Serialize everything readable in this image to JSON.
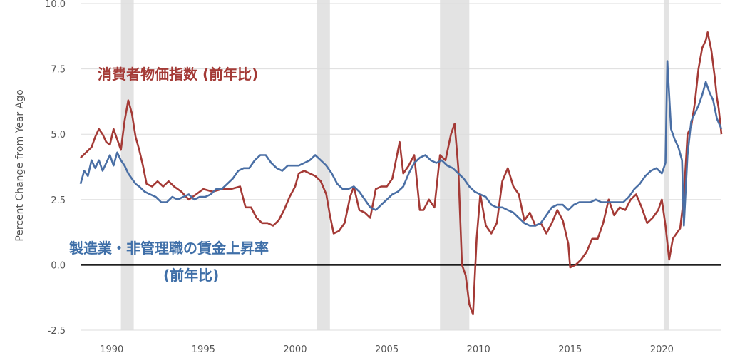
{
  "chart_data": {
    "type": "line",
    "ylabel": "Percent Change from Year Ago",
    "xlim": [
      1988.3,
      2023.25
    ],
    "ylim": [
      -2.5,
      10.0
    ],
    "y_ticks": [
      -2.5,
      0.0,
      2.5,
      5.0,
      7.5,
      10.0
    ],
    "y_tick_labels": [
      "-2.5",
      "0.0",
      "2.5",
      "5.0",
      "7.5",
      "10.0"
    ],
    "x_ticks": [
      1990,
      1995,
      2000,
      2005,
      2010,
      2015,
      2020
    ],
    "x_tick_labels": [
      "1990",
      "1995",
      "2000",
      "2005",
      "2010",
      "2015",
      "2020"
    ],
    "grid": "horizontal",
    "zero_line": true,
    "recessions": [
      [
        1990.5,
        1991.2
      ],
      [
        2001.2,
        2001.9
      ],
      [
        2007.9,
        2009.5
      ],
      [
        2020.1,
        2020.4
      ]
    ],
    "annotations": {
      "cpi_label": "消費者物価指数 (前年比)",
      "wage_label_line1": "製造業・非管理職の賃金上昇率",
      "wage_label_line2": "(前年比)"
    },
    "series": [
      {
        "name": "消費者物価指数 (前年比)",
        "color": "#a43a36",
        "points": [
          [
            1988.3,
            4.1
          ],
          [
            1988.6,
            4.3
          ],
          [
            1988.9,
            4.5
          ],
          [
            1989.1,
            4.9
          ],
          [
            1989.3,
            5.2
          ],
          [
            1989.5,
            5.0
          ],
          [
            1989.7,
            4.7
          ],
          [
            1989.9,
            4.6
          ],
          [
            1990.1,
            5.2
          ],
          [
            1990.3,
            4.8
          ],
          [
            1990.5,
            4.4
          ],
          [
            1990.7,
            5.5
          ],
          [
            1990.9,
            6.3
          ],
          [
            1991.1,
            5.8
          ],
          [
            1991.3,
            4.9
          ],
          [
            1991.5,
            4.4
          ],
          [
            1991.7,
            3.8
          ],
          [
            1991.9,
            3.1
          ],
          [
            1992.2,
            3.0
          ],
          [
            1992.5,
            3.2
          ],
          [
            1992.8,
            3.0
          ],
          [
            1993.1,
            3.2
          ],
          [
            1993.4,
            3.0
          ],
          [
            1993.8,
            2.8
          ],
          [
            1994.2,
            2.5
          ],
          [
            1994.6,
            2.7
          ],
          [
            1995.0,
            2.9
          ],
          [
            1995.5,
            2.8
          ],
          [
            1996.0,
            2.9
          ],
          [
            1996.5,
            2.9
          ],
          [
            1997.0,
            3.0
          ],
          [
            1997.3,
            2.2
          ],
          [
            1997.6,
            2.2
          ],
          [
            1997.9,
            1.8
          ],
          [
            1998.2,
            1.6
          ],
          [
            1998.5,
            1.6
          ],
          [
            1998.8,
            1.5
          ],
          [
            1999.1,
            1.7
          ],
          [
            1999.4,
            2.1
          ],
          [
            1999.7,
            2.6
          ],
          [
            2000.0,
            3.0
          ],
          [
            2000.2,
            3.5
          ],
          [
            2000.5,
            3.6
          ],
          [
            2000.8,
            3.5
          ],
          [
            2001.1,
            3.4
          ],
          [
            2001.4,
            3.2
          ],
          [
            2001.7,
            2.7
          ],
          [
            2001.9,
            1.9
          ],
          [
            2002.1,
            1.2
          ],
          [
            2002.4,
            1.3
          ],
          [
            2002.7,
            1.6
          ],
          [
            2003.0,
            2.6
          ],
          [
            2003.2,
            3.0
          ],
          [
            2003.5,
            2.1
          ],
          [
            2003.8,
            2.0
          ],
          [
            2004.1,
            1.8
          ],
          [
            2004.4,
            2.9
          ],
          [
            2004.7,
            3.0
          ],
          [
            2005.0,
            3.0
          ],
          [
            2005.3,
            3.3
          ],
          [
            2005.7,
            4.7
          ],
          [
            2005.9,
            3.5
          ],
          [
            2006.2,
            3.8
          ],
          [
            2006.5,
            4.2
          ],
          [
            2006.8,
            2.1
          ],
          [
            2007.0,
            2.1
          ],
          [
            2007.3,
            2.5
          ],
          [
            2007.6,
            2.2
          ],
          [
            2007.9,
            4.2
          ],
          [
            2008.2,
            4.0
          ],
          [
            2008.5,
            5.0
          ],
          [
            2008.7,
            5.4
          ],
          [
            2008.9,
            3.7
          ],
          [
            2009.1,
            0.0
          ],
          [
            2009.3,
            -0.4
          ],
          [
            2009.5,
            -1.5
          ],
          [
            2009.7,
            -1.9
          ],
          [
            2009.9,
            1.0
          ],
          [
            2010.1,
            2.7
          ],
          [
            2010.4,
            1.5
          ],
          [
            2010.7,
            1.2
          ],
          [
            2011.0,
            1.6
          ],
          [
            2011.3,
            3.2
          ],
          [
            2011.6,
            3.7
          ],
          [
            2011.9,
            3.0
          ],
          [
            2012.2,
            2.7
          ],
          [
            2012.5,
            1.7
          ],
          [
            2012.8,
            2.0
          ],
          [
            2013.1,
            1.5
          ],
          [
            2013.4,
            1.6
          ],
          [
            2013.7,
            1.2
          ],
          [
            2014.0,
            1.6
          ],
          [
            2014.3,
            2.1
          ],
          [
            2014.6,
            1.7
          ],
          [
            2014.9,
            0.8
          ],
          [
            2015.0,
            -0.1
          ],
          [
            2015.3,
            0.0
          ],
          [
            2015.6,
            0.2
          ],
          [
            2015.9,
            0.5
          ],
          [
            2016.2,
            1.0
          ],
          [
            2016.5,
            1.0
          ],
          [
            2016.8,
            1.6
          ],
          [
            2017.1,
            2.5
          ],
          [
            2017.4,
            1.9
          ],
          [
            2017.7,
            2.2
          ],
          [
            2018.0,
            2.1
          ],
          [
            2018.3,
            2.5
          ],
          [
            2018.6,
            2.7
          ],
          [
            2018.9,
            2.2
          ],
          [
            2019.2,
            1.6
          ],
          [
            2019.5,
            1.8
          ],
          [
            2019.8,
            2.1
          ],
          [
            2020.0,
            2.5
          ],
          [
            2020.2,
            1.5
          ],
          [
            2020.4,
            0.2
          ],
          [
            2020.6,
            1.0
          ],
          [
            2020.8,
            1.2
          ],
          [
            2021.0,
            1.4
          ],
          [
            2021.2,
            2.6
          ],
          [
            2021.4,
            5.0
          ],
          [
            2021.6,
            5.3
          ],
          [
            2021.8,
            6.2
          ],
          [
            2022.0,
            7.5
          ],
          [
            2022.2,
            8.3
          ],
          [
            2022.4,
            8.6
          ],
          [
            2022.5,
            8.9
          ],
          [
            2022.7,
            8.2
          ],
          [
            2022.9,
            7.1
          ],
          [
            2023.0,
            6.4
          ],
          [
            2023.1,
            6.0
          ],
          [
            2023.25,
            5.0
          ]
        ]
      },
      {
        "name": "製造業・非管理職の賃金上昇率 (前年比)",
        "color": "#4a6fa5",
        "points": [
          [
            1988.3,
            3.1
          ],
          [
            1988.5,
            3.6
          ],
          [
            1988.7,
            3.4
          ],
          [
            1988.9,
            4.0
          ],
          [
            1989.1,
            3.7
          ],
          [
            1989.3,
            4.0
          ],
          [
            1989.5,
            3.6
          ],
          [
            1989.7,
            3.9
          ],
          [
            1989.9,
            4.2
          ],
          [
            1990.1,
            3.8
          ],
          [
            1990.3,
            4.3
          ],
          [
            1990.5,
            4.0
          ],
          [
            1990.7,
            3.8
          ],
          [
            1990.9,
            3.5
          ],
          [
            1991.1,
            3.3
          ],
          [
            1991.3,
            3.1
          ],
          [
            1991.5,
            3.0
          ],
          [
            1991.8,
            2.8
          ],
          [
            1992.1,
            2.7
          ],
          [
            1992.4,
            2.6
          ],
          [
            1992.7,
            2.4
          ],
          [
            1993.0,
            2.4
          ],
          [
            1993.3,
            2.6
          ],
          [
            1993.6,
            2.5
          ],
          [
            1993.9,
            2.6
          ],
          [
            1994.2,
            2.7
          ],
          [
            1994.5,
            2.5
          ],
          [
            1994.8,
            2.6
          ],
          [
            1995.1,
            2.6
          ],
          [
            1995.4,
            2.7
          ],
          [
            1995.7,
            2.9
          ],
          [
            1996.0,
            2.9
          ],
          [
            1996.3,
            3.1
          ],
          [
            1996.6,
            3.3
          ],
          [
            1996.9,
            3.6
          ],
          [
            1997.2,
            3.7
          ],
          [
            1997.5,
            3.7
          ],
          [
            1997.8,
            4.0
          ],
          [
            1998.1,
            4.2
          ],
          [
            1998.4,
            4.2
          ],
          [
            1998.7,
            3.9
          ],
          [
            1999.0,
            3.7
          ],
          [
            1999.3,
            3.6
          ],
          [
            1999.6,
            3.8
          ],
          [
            1999.9,
            3.8
          ],
          [
            2000.2,
            3.8
          ],
          [
            2000.5,
            3.9
          ],
          [
            2000.8,
            4.0
          ],
          [
            2001.1,
            4.2
          ],
          [
            2001.4,
            4.0
          ],
          [
            2001.7,
            3.8
          ],
          [
            2002.0,
            3.5
          ],
          [
            2002.3,
            3.1
          ],
          [
            2002.6,
            2.9
          ],
          [
            2002.9,
            2.9
          ],
          [
            2003.2,
            3.0
          ],
          [
            2003.5,
            2.8
          ],
          [
            2003.8,
            2.5
          ],
          [
            2004.1,
            2.2
          ],
          [
            2004.4,
            2.1
          ],
          [
            2004.7,
            2.3
          ],
          [
            2005.0,
            2.5
          ],
          [
            2005.3,
            2.7
          ],
          [
            2005.6,
            2.8
          ],
          [
            2005.9,
            3.0
          ],
          [
            2006.2,
            3.5
          ],
          [
            2006.5,
            3.9
          ],
          [
            2006.8,
            4.1
          ],
          [
            2007.1,
            4.2
          ],
          [
            2007.4,
            4.0
          ],
          [
            2007.7,
            3.9
          ],
          [
            2008.0,
            4.0
          ],
          [
            2008.3,
            3.8
          ],
          [
            2008.6,
            3.7
          ],
          [
            2008.9,
            3.5
          ],
          [
            2009.2,
            3.3
          ],
          [
            2009.5,
            3.0
          ],
          [
            2009.8,
            2.8
          ],
          [
            2010.1,
            2.7
          ],
          [
            2010.4,
            2.6
          ],
          [
            2010.7,
            2.3
          ],
          [
            2011.0,
            2.2
          ],
          [
            2011.3,
            2.2
          ],
          [
            2011.6,
            2.1
          ],
          [
            2011.9,
            2.0
          ],
          [
            2012.2,
            1.8
          ],
          [
            2012.5,
            1.6
          ],
          [
            2012.8,
            1.5
          ],
          [
            2013.1,
            1.5
          ],
          [
            2013.4,
            1.6
          ],
          [
            2013.7,
            1.9
          ],
          [
            2014.0,
            2.2
          ],
          [
            2014.3,
            2.3
          ],
          [
            2014.6,
            2.3
          ],
          [
            2014.9,
            2.1
          ],
          [
            2015.2,
            2.3
          ],
          [
            2015.5,
            2.4
          ],
          [
            2015.8,
            2.4
          ],
          [
            2016.1,
            2.4
          ],
          [
            2016.4,
            2.5
          ],
          [
            2016.7,
            2.4
          ],
          [
            2017.0,
            2.4
          ],
          [
            2017.3,
            2.4
          ],
          [
            2017.6,
            2.4
          ],
          [
            2017.9,
            2.4
          ],
          [
            2018.2,
            2.6
          ],
          [
            2018.5,
            2.9
          ],
          [
            2018.8,
            3.1
          ],
          [
            2019.1,
            3.4
          ],
          [
            2019.4,
            3.6
          ],
          [
            2019.7,
            3.7
          ],
          [
            2020.0,
            3.5
          ],
          [
            2020.2,
            3.9
          ],
          [
            2020.3,
            7.8
          ],
          [
            2020.5,
            5.2
          ],
          [
            2020.7,
            4.8
          ],
          [
            2020.9,
            4.5
          ],
          [
            2021.1,
            4.0
          ],
          [
            2021.2,
            1.5
          ],
          [
            2021.4,
            4.2
          ],
          [
            2021.6,
            5.5
          ],
          [
            2021.8,
            5.8
          ],
          [
            2022.0,
            6.1
          ],
          [
            2022.2,
            6.5
          ],
          [
            2022.4,
            7.0
          ],
          [
            2022.6,
            6.6
          ],
          [
            2022.8,
            6.3
          ],
          [
            2023.0,
            5.6
          ],
          [
            2023.25,
            5.2
          ]
        ]
      }
    ]
  }
}
